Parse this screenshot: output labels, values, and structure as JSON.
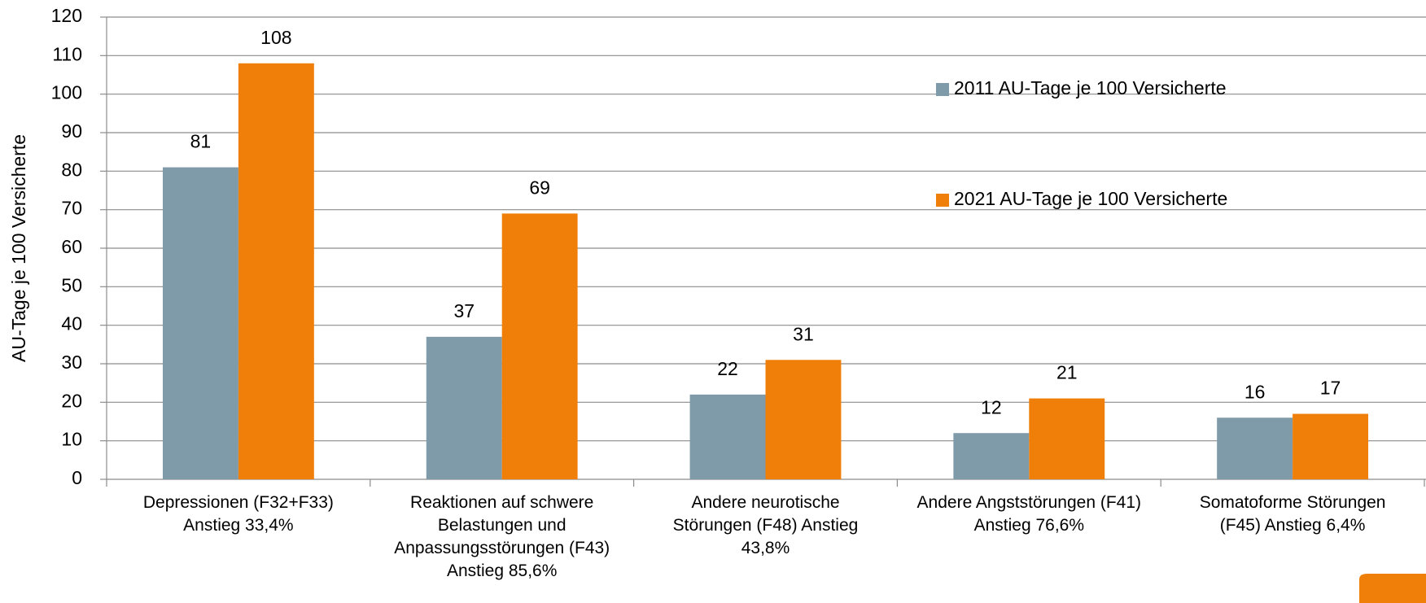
{
  "chart_data": {
    "type": "bar",
    "y_label": "AU-Tage je 100 Versicherte",
    "categories": [
      "Depressionen (F32+F33)\nAnstieg 33,4%",
      "Reaktionen auf schwere\nBelastungen und\nAnpassungsstörungen (F43)\nAnstieg 85,6%",
      "Andere neurotische\nStörungen (F48) Anstieg\n43,8%",
      "Andere Angststörungen (F41)\nAnstieg 76,6%",
      "Somatoforme Störungen\n(F45) Anstieg 6,4%"
    ],
    "series": [
      {
        "name": "2011 AU-Tage je 100 Versicherte",
        "color": "#7f9baa",
        "values": [
          81,
          37,
          22,
          12,
          16
        ]
      },
      {
        "name": "2021 AU-Tage je 100 Versicherte",
        "color": "#f07f09",
        "values": [
          108,
          69,
          31,
          21,
          17
        ]
      }
    ],
    "ylim": [
      0,
      120
    ],
    "yticks": [
      0,
      10,
      20,
      30,
      40,
      50,
      60,
      70,
      80,
      90,
      100,
      110,
      120
    ],
    "grid": true,
    "legend_position": "upper right"
  }
}
